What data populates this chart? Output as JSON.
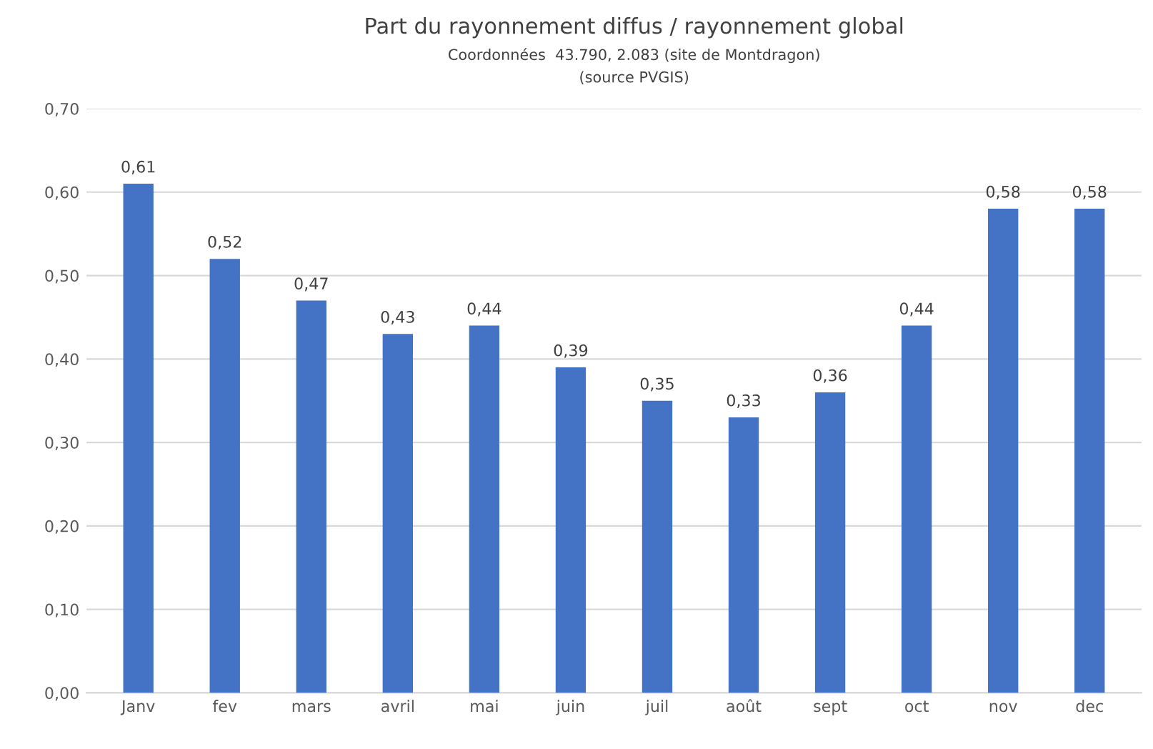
{
  "chart_data": {
    "type": "bar",
    "title": "Part du rayonnement diffus / rayonnement global",
    "subtitle": "Coordonnées  43.790, 2.083 (site de Montdragon)",
    "annotations": [
      "(source PVGIS)"
    ],
    "categories": [
      "Janv",
      "fev",
      "mars",
      "avril",
      "mai",
      "juin",
      "juil",
      "août",
      "sept",
      "oct",
      "nov",
      "dec"
    ],
    "values": [
      0.61,
      0.52,
      0.47,
      0.43,
      0.44,
      0.39,
      0.35,
      0.33,
      0.36,
      0.44,
      0.58,
      0.58
    ],
    "value_labels": [
      "0,61",
      "0,52",
      "0,47",
      "0,43",
      "0,44",
      "0,39",
      "0,35",
      "0,33",
      "0,36",
      "0,44",
      "0,58",
      "0,58"
    ],
    "color": "#4472c4",
    "ylim": [
      0,
      0.7
    ],
    "yticks": [
      {
        "value": 0,
        "label": "0,00"
      },
      {
        "value": 0.1,
        "label": "0,10"
      },
      {
        "value": 0.2,
        "label": "0,20"
      },
      {
        "value": 0.3,
        "label": "0,30"
      },
      {
        "value": 0.4,
        "label": "0,40"
      },
      {
        "value": 0.5,
        "label": "0,50"
      },
      {
        "value": 0.6,
        "label": "0,60"
      },
      {
        "value": 0.7,
        "label": "0,70"
      }
    ],
    "grid": "y"
  }
}
